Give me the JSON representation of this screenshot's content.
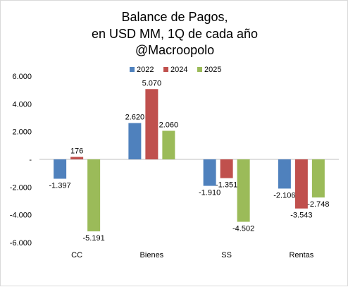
{
  "chart_data": {
    "type": "bar",
    "title_lines": [
      "Balance de Pagos,",
      "en USD MM, 1Q de cada año",
      "@Macroopolo"
    ],
    "categories": [
      "CC",
      "Bienes",
      "SS",
      "Rentas"
    ],
    "series": [
      {
        "name": "2022",
        "color": "#4f81bd",
        "values": [
          -1397,
          2620,
          -1910,
          -2106
        ]
      },
      {
        "name": "2024",
        "color": "#c0504d",
        "values": [
          176,
          5070,
          -1351,
          -3543
        ]
      },
      {
        "name": "2025",
        "color": "#9bbb59",
        "values": [
          -5191,
          2060,
          -4502,
          -2748
        ]
      }
    ],
    "data_labels": [
      [
        "-1.397",
        "2.620",
        "-1.910",
        "-2.106"
      ],
      [
        "176",
        "5.070",
        "-1.351",
        "-3.543"
      ],
      [
        "-5.191",
        "2.060",
        "-4.502",
        "-2.748"
      ]
    ],
    "yticks": [
      6000,
      4000,
      2000,
      0,
      -2000,
      -4000,
      -6000
    ],
    "ytick_labels": [
      "6.000",
      "4.000",
      "2.000",
      "-",
      "-2.000",
      "-4.000",
      "-6.000"
    ],
    "ylim": [
      -6000,
      6000
    ],
    "legend_position": "top",
    "grid": false,
    "xlabel": "",
    "ylabel": ""
  }
}
